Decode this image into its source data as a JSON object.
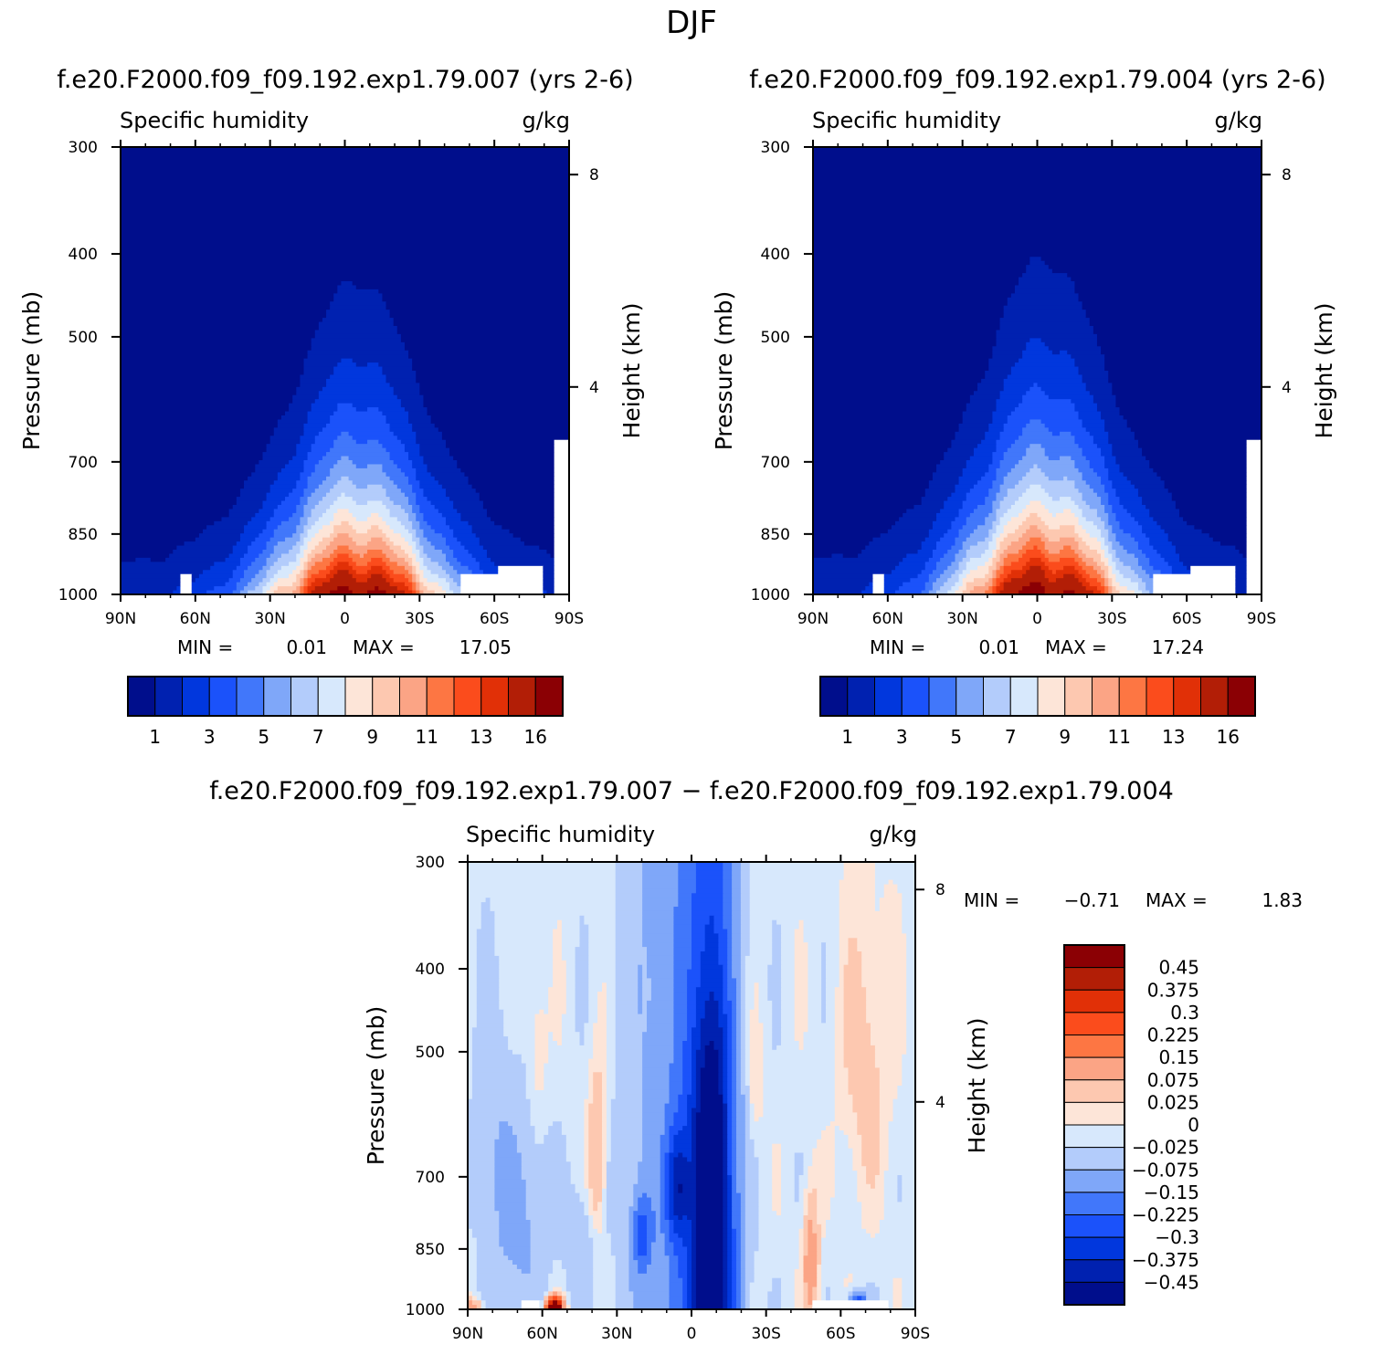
{
  "figure_title": "DJF",
  "colors": {
    "abs_palette": [
      "#000e8c",
      "#0021b0",
      "#0137dd",
      "#1b52fa",
      "#4177fa",
      "#7fa7f9",
      "#b3ccfb",
      "#d7e8fc",
      "#fde5d8",
      "#fdc8b0",
      "#fba485",
      "#fd7643",
      "#fb4c1c",
      "#e13007",
      "#b21e06",
      "#8b0004"
    ],
    "diff_palette": [
      "#000e8c",
      "#0021b0",
      "#0137dd",
      "#1b52fa",
      "#4177fa",
      "#7fa7f9",
      "#b3ccfb",
      "#d7e8fc",
      "#fde5d8",
      "#fdc8b0",
      "#fba485",
      "#fd7643",
      "#fb4c1c",
      "#e13007",
      "#b21e06",
      "#8b0004"
    ]
  },
  "chart_data": [
    {
      "type": "contour",
      "title": "f.e20.F2000.f09_f09.192.exp1.79.007 (yrs 2-6)",
      "left_label": "Specific humidity",
      "right_label": "g/kg",
      "ylabel": "Pressure (mb)",
      "right_ylabel": "Height (km)",
      "x_ticks": [
        "90N",
        "60N",
        "30N",
        "0",
        "30S",
        "60S",
        "90S"
      ],
      "y_ticks": [
        "300",
        "400",
        "500",
        "700",
        "850",
        "1000"
      ],
      "right_ticks": [
        "8",
        "4"
      ],
      "min_label": "MIN =",
      "min_value": "0.01",
      "max_label": "MAX =",
      "max_value": "17.05",
      "colorbar_labels": [
        "1",
        "3",
        "5",
        "7",
        "9",
        "11",
        "13",
        "16"
      ],
      "peak": 17.05,
      "peak_lat": -5,
      "top_pressure": 395
    },
    {
      "type": "contour",
      "title": "f.e20.F2000.f09_f09.192.exp1.79.004 (yrs 2-6)",
      "left_label": "Specific humidity",
      "right_label": "g/kg",
      "ylabel": "Pressure (mb)",
      "right_ylabel": "Height (km)",
      "x_ticks": [
        "90N",
        "60N",
        "30N",
        "0",
        "30S",
        "60S",
        "90S"
      ],
      "y_ticks": [
        "300",
        "400",
        "500",
        "700",
        "850",
        "1000"
      ],
      "right_ticks": [
        "8",
        "4"
      ],
      "min_label": "MIN =",
      "min_value": "0.01",
      "max_label": "MAX =",
      "max_value": "17.24",
      "colorbar_labels": [
        "1",
        "3",
        "5",
        "7",
        "9",
        "11",
        "13",
        "16"
      ],
      "peak": 17.24,
      "peak_lat": -3,
      "top_pressure": 370
    },
    {
      "type": "contour",
      "title": "f.e20.F2000.f09_f09.192.exp1.79.007 − f.e20.F2000.f09_f09.192.exp1.79.004",
      "left_label": "Specific humidity",
      "right_label": "g/kg",
      "ylabel": "Pressure (mb)",
      "right_ylabel": "Height (km)",
      "x_ticks": [
        "90N",
        "60N",
        "30N",
        "0",
        "30S",
        "60S",
        "90S"
      ],
      "y_ticks": [
        "300",
        "400",
        "500",
        "700",
        "850",
        "1000"
      ],
      "right_ticks": [
        "8",
        "4"
      ],
      "min_label": "MIN =",
      "min_value": "−0.71",
      "max_label": "MAX =",
      "max_value": "1.83",
      "colorbar_labels": [
        "0.45",
        "0.375",
        "0.3",
        "0.225",
        "0.15",
        "0.075",
        "0.025",
        "0",
        "−0.025",
        "−0.075",
        "−0.15",
        "−0.225",
        "−0.3",
        "−0.375",
        "−0.45"
      ]
    }
  ]
}
